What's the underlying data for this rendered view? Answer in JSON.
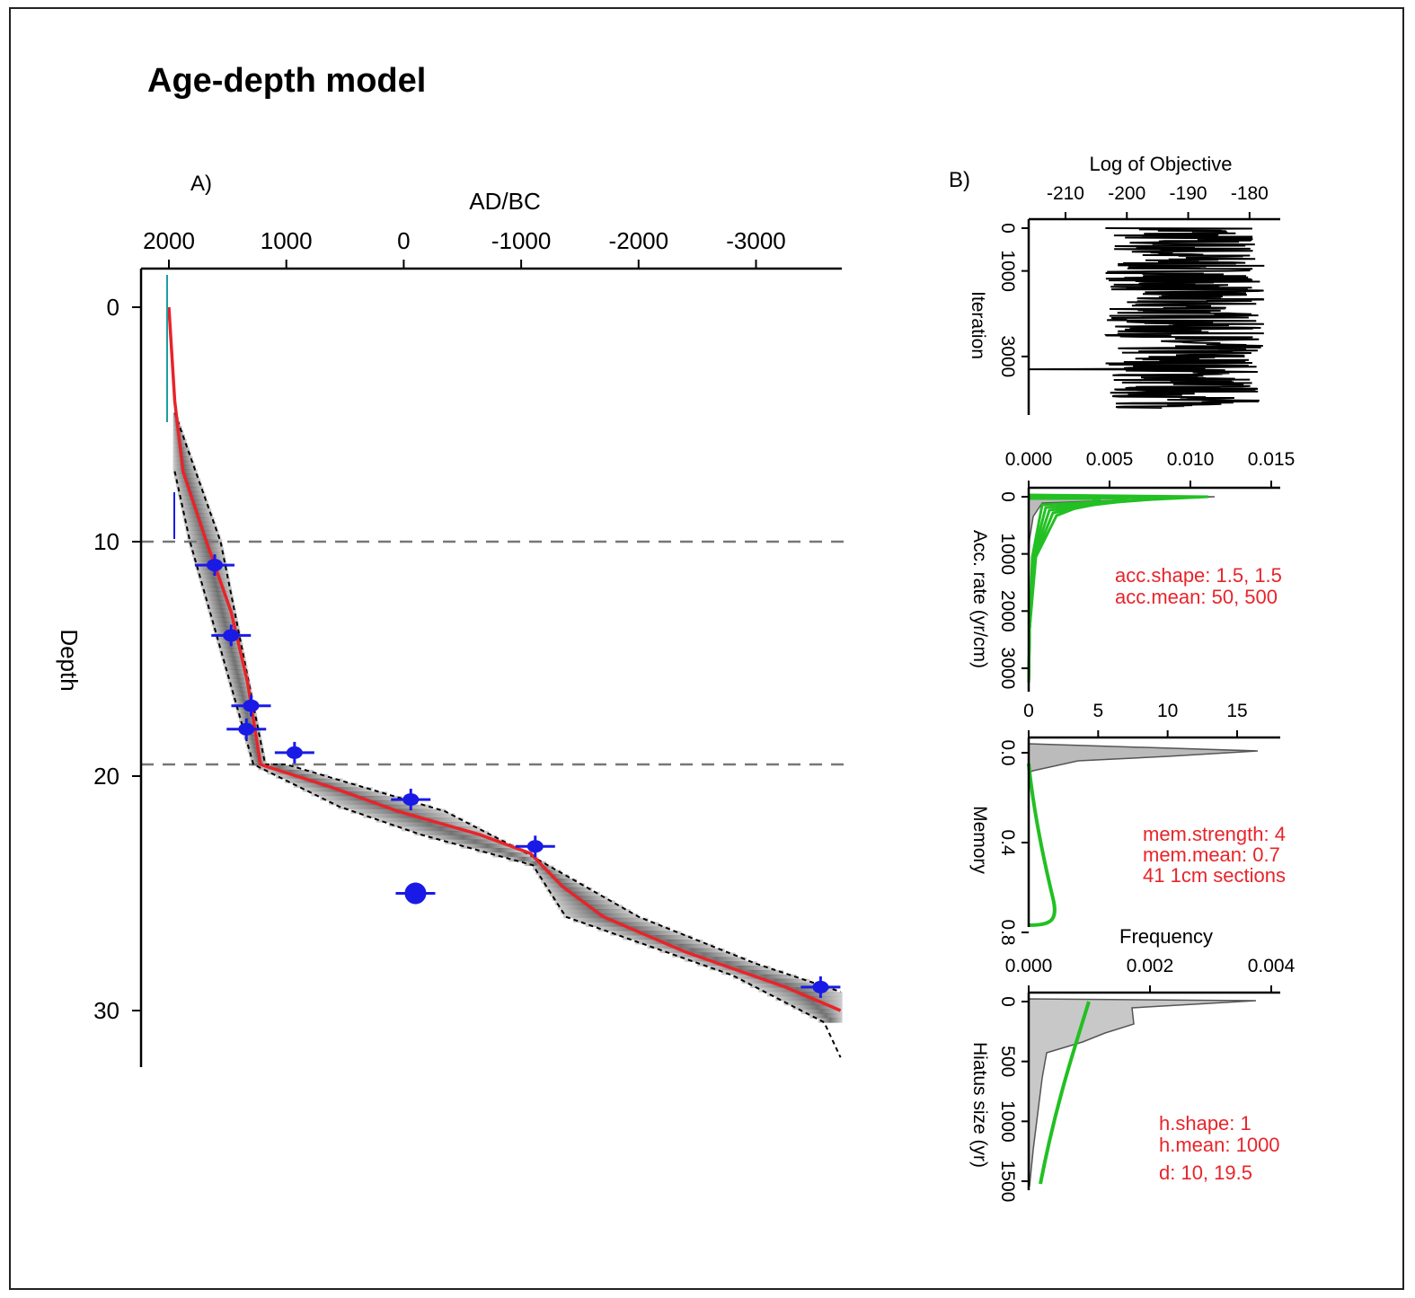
{
  "title": "Age-depth model",
  "colors": {
    "model": "#e8242a",
    "dates": "#1a1ae6",
    "prior": "#22c022",
    "envelope": "#000000",
    "shade": "#9a9a9a",
    "hiatus_line": "#777777"
  },
  "chart_data": [
    {
      "panel_label": "A)",
      "type": "line",
      "xlabel": "AD/BC",
      "ylabel": "Depth",
      "x_ticks": [
        "2000",
        "1000",
        "0",
        "-1000",
        "-2000",
        "-3000"
      ],
      "y_ticks": [
        "0",
        "10",
        "20",
        "30"
      ],
      "xlim": [
        2500,
        -3750
      ],
      "ylim": [
        -1.5,
        32.5
      ],
      "hiatus_depths": [
        10,
        19.5
      ],
      "model_mean": [
        {
          "depth": 0,
          "age": 2000
        },
        {
          "depth": 4,
          "age": 1950
        },
        {
          "depth": 7,
          "age": 1880
        },
        {
          "depth": 10,
          "age": 1680
        },
        {
          "depth": 13,
          "age": 1470
        },
        {
          "depth": 16,
          "age": 1330
        },
        {
          "depth": 19.5,
          "age": 1220
        },
        {
          "depth": 20.5,
          "age": 600
        },
        {
          "depth": 21.5,
          "age": 50
        },
        {
          "depth": 22.5,
          "age": -650
        },
        {
          "depth": 23.3,
          "age": -1080
        },
        {
          "depth": 24.7,
          "age": -1350
        },
        {
          "depth": 26,
          "age": -1700
        },
        {
          "depth": 27.5,
          "age": -2400
        },
        {
          "depth": 29,
          "age": -3250
        },
        {
          "depth": 30,
          "age": -3720
        }
      ],
      "envelope_young": [
        {
          "depth": 4.5,
          "age": 1950
        },
        {
          "depth": 10,
          "age": 1560
        },
        {
          "depth": 19.5,
          "age": 1180
        },
        {
          "depth": 19.5,
          "age": 1000
        },
        {
          "depth": 21.5,
          "age": -350
        },
        {
          "depth": 23.3,
          "age": -1050
        },
        {
          "depth": 26,
          "age": -2000
        },
        {
          "depth": 28,
          "age": -3000
        },
        {
          "depth": 29.2,
          "age": -3720
        }
      ],
      "envelope_old": [
        {
          "depth": 7,
          "age": 1950
        },
        {
          "depth": 10,
          "age": 1820
        },
        {
          "depth": 19.5,
          "age": 1280
        },
        {
          "depth": 21.3,
          "age": 550
        },
        {
          "depth": 22.5,
          "age": -150
        },
        {
          "depth": 23.8,
          "age": -1100
        },
        {
          "depth": 26,
          "age": -1380
        },
        {
          "depth": 28.5,
          "age": -2800
        },
        {
          "depth": 30.5,
          "age": -3580
        },
        {
          "depth": 32,
          "age": -3720
        }
      ],
      "dates": [
        {
          "depth": 11,
          "age": 1610
        },
        {
          "depth": 14,
          "age": 1470
        },
        {
          "depth": 17,
          "age": 1300
        },
        {
          "depth": 18,
          "age": 1340
        },
        {
          "depth": 19,
          "age": 930
        },
        {
          "depth": 21,
          "age": -60
        },
        {
          "depth": 23,
          "age": -1120
        },
        {
          "depth": 25,
          "age": -100
        },
        {
          "depth": 29,
          "age": -3550
        }
      ]
    },
    {
      "panel_label": "B)",
      "type": "line",
      "xlabel": "Log of Objective",
      "ylabel": "Iteration",
      "x_ticks": [
        "-210",
        "-200",
        "-190",
        "-180"
      ],
      "y_ticks": [
        "0",
        "1000",
        "3000"
      ],
      "xlim": [
        -216,
        -175
      ],
      "ylim": [
        0,
        4200
      ],
      "center": -190.5
    },
    {
      "type": "area",
      "xlabel": "",
      "ylabel": "Acc. rate (yr/cm)",
      "x_ticks": [
        "0.000",
        "0.005",
        "0.010",
        "0.015"
      ],
      "y_ticks": [
        "0",
        "1000",
        "2000",
        "3000"
      ],
      "xlim": [
        0,
        0.0158
      ],
      "ylim": [
        0,
        3300
      ],
      "annotations": [
        "acc.shape:  1.5, 1.5",
        "acc.mean:  50, 500"
      ]
    },
    {
      "type": "area",
      "xlabel": "",
      "ylabel": "Memory",
      "x_ticks": [
        "0",
        "5",
        "10",
        "15"
      ],
      "y_ticks": [
        "0.0",
        "0.4",
        "0.8"
      ],
      "xlim": [
        0,
        18
      ],
      "ylim": [
        0,
        1
      ],
      "annotations": [
        "mem.strength:  4",
        "mem.mean:  0.7",
        "41  1cm sections"
      ]
    },
    {
      "type": "area",
      "xlabel": "Frequency",
      "ylabel": "Hiatus size (yr)",
      "x_ticks": [
        "0.000",
        "0.002",
        "0.004"
      ],
      "y_ticks": [
        "0",
        "500",
        "1000",
        "1500"
      ],
      "xlim": [
        0,
        0.0041
      ],
      "ylim": [
        0,
        1550
      ],
      "annotations": [
        "h.shape:  1",
        "h.mean:  1000",
        "d:  10, 19.5"
      ]
    }
  ]
}
